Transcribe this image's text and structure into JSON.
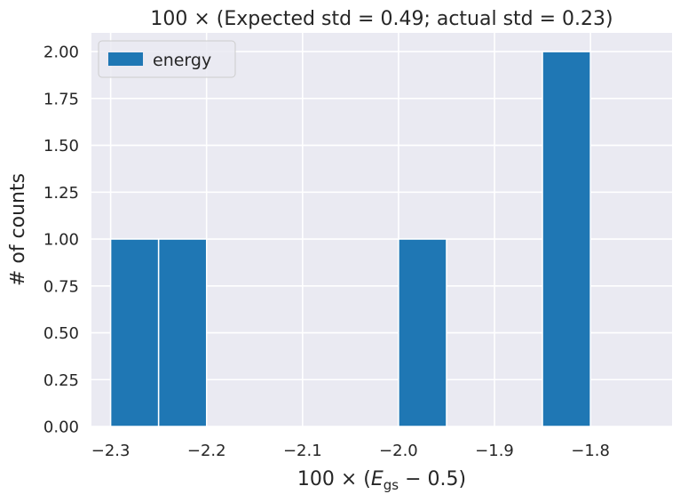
{
  "chart_data": {
    "type": "bar",
    "title": "100 ×  (Expected std = 0.49; actual std = 0.23)",
    "xlabel_prefix": "100 × (",
    "xlabel_symbol": "E",
    "xlabel_subscript": "gs",
    "xlabel_suffix": " − 0.5)",
    "ylabel": "# of counts",
    "xlim": [
      -2.32,
      -1.715
    ],
    "ylim": [
      0,
      2.1
    ],
    "xticks": [
      -2.3,
      -2.2,
      -2.1,
      -2.0,
      -1.9,
      -1.8
    ],
    "xtick_labels": [
      "−2.3",
      "−2.2",
      "−2.1",
      "−2.0",
      "−1.9",
      "−1.8"
    ],
    "yticks": [
      0,
      0.25,
      0.5,
      0.75,
      1.0,
      1.25,
      1.5,
      1.75,
      2.0
    ],
    "ytick_labels": [
      "0.00",
      "0.25",
      "0.50",
      "0.75",
      "1.00",
      "1.25",
      "1.50",
      "1.75",
      "2.00"
    ],
    "grid": true,
    "legend": {
      "position": "upper-left"
    },
    "series": [
      {
        "name": "energy",
        "color": "#1f77b4",
        "bins": [
          {
            "x0": -2.3,
            "x1": -2.25,
            "count": 1
          },
          {
            "x0": -2.25,
            "x1": -2.2,
            "count": 1
          },
          {
            "x0": -2.2,
            "x1": -2.15,
            "count": 0
          },
          {
            "x0": -2.15,
            "x1": -2.1,
            "count": 0
          },
          {
            "x0": -2.1,
            "x1": -2.05,
            "count": 0
          },
          {
            "x0": -2.05,
            "x1": -2.0,
            "count": 0
          },
          {
            "x0": -2.0,
            "x1": -1.95,
            "count": 1
          },
          {
            "x0": -1.95,
            "x1": -1.9,
            "count": 0
          },
          {
            "x0": -1.9,
            "x1": -1.85,
            "count": 0
          },
          {
            "x0": -1.85,
            "x1": -1.8,
            "count": 2
          }
        ]
      }
    ]
  },
  "colors": {
    "plot_background": "#eaeaf2",
    "grid": "#ffffff",
    "text": "#262626",
    "bar_edge": "#ffffff"
  }
}
